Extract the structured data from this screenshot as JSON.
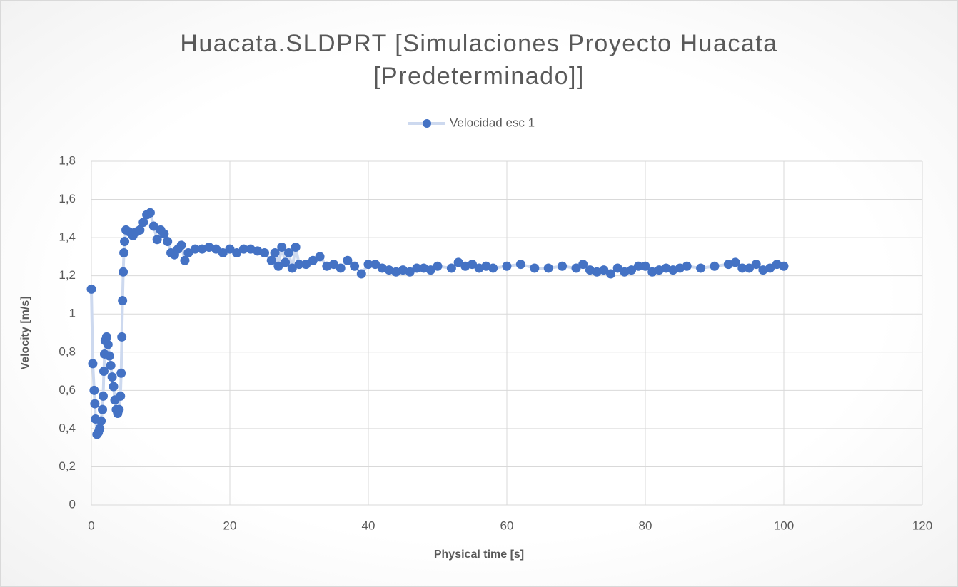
{
  "chart_data": {
    "type": "scatter",
    "title": "Huacata.SLDPRT [Simulaciones Proyecto Huacata [Predeterminado]]",
    "x_label": "Physical time [s]",
    "y_label": "Velocity [m/s]",
    "legend": "top",
    "grid": true,
    "lines": true,
    "series": [
      {
        "name": "Velocidad esc 1",
        "color": "#4472c4",
        "line_color": "#cdd9ef",
        "x": [
          0,
          0.2,
          0.4,
          0.5,
          0.6,
          0.8,
          1,
          1.2,
          1.4,
          1.6,
          1.7,
          1.8,
          1.9,
          2,
          2.2,
          2.4,
          2.6,
          2.8,
          3,
          3.2,
          3.4,
          3.6,
          3.8,
          4,
          4.2,
          4.3,
          4.4,
          4.5,
          4.6,
          4.7,
          4.8,
          5,
          5.5,
          6,
          6.5,
          7,
          7.5,
          8,
          8.5,
          9,
          9.5,
          10,
          10.5,
          11,
          11.5,
          12,
          12.5,
          13,
          13.5,
          14,
          15,
          16,
          17,
          18,
          19,
          20,
          21,
          22,
          23,
          24,
          25,
          26,
          26.5,
          27,
          27.5,
          28,
          28.5,
          29,
          29.5,
          30,
          31,
          32,
          33,
          34,
          35,
          36,
          37,
          38,
          39,
          40,
          41,
          42,
          43,
          44,
          45,
          46,
          47,
          48,
          49,
          50,
          52,
          53,
          54,
          55,
          56,
          57,
          58,
          60,
          62,
          64,
          66,
          68,
          70,
          71,
          72,
          73,
          74,
          75,
          76,
          77,
          78,
          79,
          80,
          81,
          82,
          83,
          84,
          85,
          86,
          88,
          90,
          92,
          93,
          94,
          95,
          96,
          97,
          98,
          99,
          100
        ],
        "values": [
          1.13,
          0.74,
          0.6,
          0.53,
          0.45,
          0.37,
          0.38,
          0.4,
          0.44,
          0.5,
          0.57,
          0.7,
          0.79,
          0.86,
          0.88,
          0.84,
          0.78,
          0.73,
          0.67,
          0.62,
          0.55,
          0.5,
          0.48,
          0.5,
          0.57,
          0.69,
          0.88,
          1.07,
          1.22,
          1.32,
          1.38,
          1.44,
          1.43,
          1.41,
          1.43,
          1.44,
          1.48,
          1.52,
          1.53,
          1.46,
          1.39,
          1.44,
          1.42,
          1.38,
          1.32,
          1.31,
          1.34,
          1.36,
          1.28,
          1.32,
          1.34,
          1.34,
          1.35,
          1.34,
          1.32,
          1.34,
          1.32,
          1.34,
          1.34,
          1.33,
          1.32,
          1.28,
          1.32,
          1.25,
          1.35,
          1.27,
          1.32,
          1.24,
          1.35,
          1.26,
          1.26,
          1.28,
          1.3,
          1.25,
          1.26,
          1.24,
          1.28,
          1.25,
          1.21,
          1.26,
          1.26,
          1.24,
          1.23,
          1.22,
          1.23,
          1.22,
          1.24,
          1.24,
          1.23,
          1.25,
          1.24,
          1.27,
          1.25,
          1.26,
          1.24,
          1.25,
          1.24,
          1.25,
          1.26,
          1.24,
          1.24,
          1.25,
          1.24,
          1.26,
          1.23,
          1.22,
          1.23,
          1.21,
          1.24,
          1.22,
          1.23,
          1.25,
          1.25,
          1.22,
          1.23,
          1.24,
          1.23,
          1.24,
          1.25,
          1.24,
          1.25,
          1.26,
          1.27,
          1.24,
          1.24,
          1.26,
          1.23,
          1.24,
          1.26,
          1.25
        ]
      }
    ],
    "xlim": [
      0,
      120
    ],
    "xticks": [
      0,
      20,
      40,
      60,
      80,
      100,
      120
    ],
    "ylim": [
      0,
      1.8
    ],
    "yticks": [
      0,
      {
        "value": 0.2,
        "label": "0,2"
      },
      {
        "value": 0.4,
        "label": "0,4"
      },
      {
        "value": 0.6,
        "label": "0,6"
      },
      {
        "value": 0.8,
        "label": "0,8"
      },
      1,
      {
        "value": 1.2,
        "label": "1,2"
      },
      {
        "value": 1.4,
        "label": "1,4"
      },
      {
        "value": 1.6,
        "label": "1,6"
      },
      {
        "value": 1.8,
        "label": "1,8"
      }
    ]
  }
}
